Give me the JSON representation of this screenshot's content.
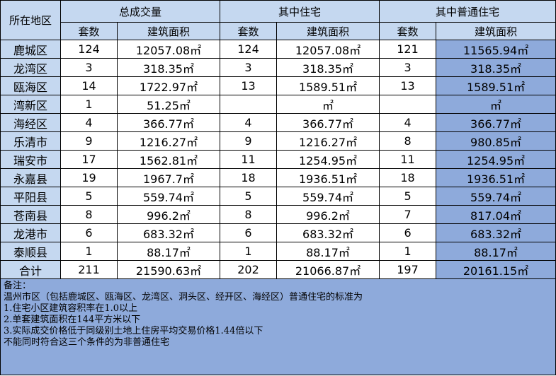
{
  "header": {
    "region": "所在地区",
    "groups": [
      "总成交量",
      "其中住宅",
      "其中普通住宅"
    ],
    "sub": [
      "套数",
      "建筑面积"
    ]
  },
  "rows": [
    {
      "region": "鹿城区",
      "total_units": "124",
      "total_area": "12057.08㎡",
      "res_units": "124",
      "res_area": "12057.08㎡",
      "ord_units": "121",
      "ord_area": "11565.94㎡"
    },
    {
      "region": "龙湾区",
      "total_units": "3",
      "total_area": "318.35㎡",
      "res_units": "3",
      "res_area": "318.35㎡",
      "ord_units": "3",
      "ord_area": "318.35㎡"
    },
    {
      "region": "瓯海区",
      "total_units": "14",
      "total_area": "1722.97㎡",
      "res_units": "13",
      "res_area": "1589.51㎡",
      "ord_units": "13",
      "ord_area": "1589.51㎡"
    },
    {
      "region": "湾新区",
      "total_units": "1",
      "total_area": "51.25㎡",
      "res_units": "",
      "res_area": "㎡",
      "ord_units": "",
      "ord_area": "㎡"
    },
    {
      "region": "海经区",
      "total_units": "4",
      "total_area": "366.77㎡",
      "res_units": "4",
      "res_area": "366.77㎡",
      "ord_units": "4",
      "ord_area": "366.77㎡"
    },
    {
      "region": "乐清市",
      "total_units": "9",
      "total_area": "1216.27㎡",
      "res_units": "9",
      "res_area": "1216.27㎡",
      "ord_units": "8",
      "ord_area": "980.85㎡"
    },
    {
      "region": "瑞安市",
      "total_units": "17",
      "total_area": "1562.81㎡",
      "res_units": "11",
      "res_area": "1254.95㎡",
      "ord_units": "11",
      "ord_area": "1254.95㎡"
    },
    {
      "region": "永嘉县",
      "total_units": "19",
      "total_area": "1967.7㎡",
      "res_units": "18",
      "res_area": "1936.51㎡",
      "ord_units": "18",
      "ord_area": "1936.51㎡"
    },
    {
      "region": "平阳县",
      "total_units": "5",
      "total_area": "559.74㎡",
      "res_units": "5",
      "res_area": "559.74㎡",
      "ord_units": "5",
      "ord_area": "559.74㎡"
    },
    {
      "region": "苍南县",
      "total_units": "8",
      "total_area": "996.2㎡",
      "res_units": "8",
      "res_area": "996.2㎡",
      "ord_units": "7",
      "ord_area": "817.04㎡"
    },
    {
      "region": "龙港市",
      "total_units": "6",
      "total_area": "683.32㎡",
      "res_units": "6",
      "res_area": "683.32㎡",
      "ord_units": "6",
      "ord_area": "683.32㎡"
    },
    {
      "region": "泰顺县",
      "total_units": "1",
      "total_area": "88.17㎡",
      "res_units": "1",
      "res_area": "88.17㎡",
      "ord_units": "1",
      "ord_area": "88.17㎡"
    }
  ],
  "total": {
    "region": "合计",
    "total_units": "211",
    "total_area": "21590.63㎡",
    "res_units": "202",
    "res_area": "21066.87㎡",
    "ord_units": "197",
    "ord_area": "20161.15㎡"
  },
  "notes": [
    "备注：",
    "温州市区（包括鹿城区、瓯海区、龙湾区、洞头区、经开区、海经区）普通住宅的标准为",
    "1.住宅小区建筑容积率在1.0以上",
    "2.单套建筑面积在144平方米以下",
    "3.实际成交价格低于同级别土地上住房平均交易价格1.44倍以下",
    "不能同时符合这三个条件的为非普通住宅"
  ],
  "colors": {
    "header_fill": "#c5d8f0",
    "blue_fill": "#8eaadb",
    "white_fill": "#ffffff",
    "grid": "#000000"
  }
}
